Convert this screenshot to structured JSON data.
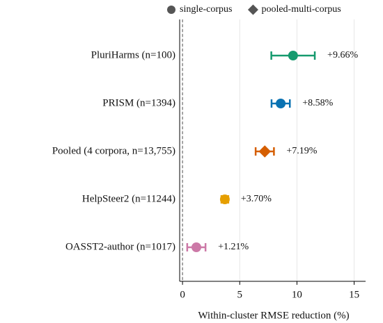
{
  "chart_data": {
    "type": "forest",
    "xlabel": "Within-cluster RMSE reduction (%)",
    "categories": [
      "PluriHarms (n=100)",
      "PRISM (n=1394)",
      "Pooled (4 corpora, n=13,755)",
      "HelpSteer2 (n=11244)",
      "OASST2-author (n=1017)"
    ],
    "values": [
      9.66,
      8.58,
      7.19,
      3.7,
      1.21
    ],
    "value_labels": [
      "+9.66%",
      "+8.58%",
      "+7.19%",
      "+3.70%",
      "+1.21%"
    ],
    "errors": [
      1.9,
      0.8,
      0.8,
      0.3,
      0.8
    ],
    "colors": [
      "#159a6e",
      "#0a72b2",
      "#d55e00",
      "#e69f00",
      "#cc79a7"
    ],
    "markers": [
      "circle",
      "circle",
      "diamond",
      "circle",
      "circle"
    ],
    "legend": [
      {
        "label": "single-corpus",
        "marker": "circle"
      },
      {
        "label": "pooled-multi-corpus",
        "marker": "diamond"
      }
    ],
    "xlim": [
      -0.25,
      16
    ],
    "xticks": [
      0,
      5,
      10,
      15
    ],
    "grid": true,
    "reference_line": 0
  }
}
